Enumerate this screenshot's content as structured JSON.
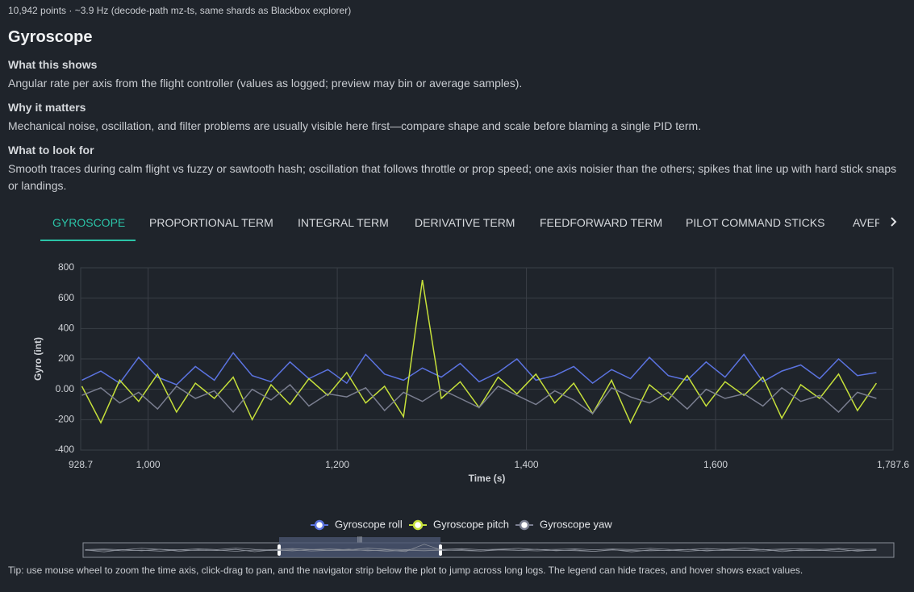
{
  "header": {
    "meta": "10,942 points · ~3.9 Hz (decode-path mz-ts, same shards as Blackbox explorer)",
    "title": "Gyroscope"
  },
  "sections": [
    {
      "heading": "What this shows",
      "text": "Angular rate per axis from the flight controller (values as logged; preview may bin or average samples)."
    },
    {
      "heading": "Why it matters",
      "text": "Mechanical noise, oscillation, and filter problems are usually visible here first—compare shape and scale before blaming a single PID term."
    },
    {
      "heading": "What to look for",
      "text": "Smooth traces during calm flight vs fuzzy or sawtooth hash; oscillation that follows throttle or prop speed; one axis noisier than the others; spikes that line up with hard stick snaps or landings."
    }
  ],
  "tabs": [
    "GYROSCOPE",
    "PROPORTIONAL TERM",
    "INTEGRAL TERM",
    "DERIVATIVE TERM",
    "FEEDFORWARD TERM",
    "PILOT COMMAND STICKS",
    "AVER"
  ],
  "chart_data": {
    "type": "line",
    "xlabel": "Time (s)",
    "ylabel": "Gyro (int)",
    "x": [
      930,
      950,
      970,
      990,
      1010,
      1030,
      1050,
      1070,
      1090,
      1110,
      1130,
      1150,
      1170,
      1190,
      1210,
      1230,
      1250,
      1270,
      1290,
      1310,
      1330,
      1350,
      1370,
      1390,
      1410,
      1430,
      1450,
      1470,
      1490,
      1510,
      1530,
      1550,
      1570,
      1590,
      1610,
      1630,
      1650,
      1670,
      1690,
      1710,
      1730,
      1750,
      1770
    ],
    "series": [
      {
        "name": "Gyroscope roll",
        "color": "#5b73e0",
        "values": [
          60,
          120,
          40,
          210,
          80,
          30,
          150,
          60,
          240,
          90,
          50,
          180,
          70,
          130,
          40,
          230,
          100,
          60,
          140,
          80,
          170,
          50,
          110,
          200,
          60,
          90,
          150,
          40,
          130,
          70,
          210,
          90,
          60,
          180,
          80,
          230,
          50,
          120,
          160,
          70,
          200,
          90,
          110
        ]
      },
      {
        "name": "Gyroscope pitch",
        "color": "#c6e03a",
        "values": [
          20,
          -220,
          60,
          -80,
          100,
          -150,
          40,
          -60,
          80,
          -200,
          30,
          -100,
          70,
          -40,
          110,
          -90,
          20,
          -180,
          720,
          -60,
          50,
          -120,
          80,
          -30,
          100,
          -90,
          40,
          -160,
          60,
          -220,
          30,
          -70,
          90,
          -110,
          50,
          -40,
          80,
          -190,
          30,
          -60,
          100,
          -140,
          40
        ]
      },
      {
        "name": "Gyroscope yaw",
        "color": "#7a7e90",
        "values": [
          -40,
          10,
          -90,
          -20,
          -130,
          20,
          -60,
          -10,
          -150,
          0,
          -70,
          30,
          -110,
          -30,
          -50,
          10,
          -140,
          -20,
          -80,
          0,
          -60,
          -120,
          20,
          -40,
          -100,
          -10,
          -70,
          -160,
          10,
          -50,
          -90,
          -20,
          -130,
          0,
          -60,
          -30,
          -110,
          10,
          -80,
          -40,
          -150,
          -20,
          -60
        ]
      }
    ],
    "xlim": [
      928.7,
      1787.6
    ],
    "xticks": [
      {
        "value": 928.7,
        "label": "928.7"
      },
      {
        "value": 1000,
        "label": "1,000"
      },
      {
        "value": 1200,
        "label": "1,200"
      },
      {
        "value": 1400,
        "label": "1,400"
      },
      {
        "value": 1600,
        "label": "1,600"
      },
      {
        "value": 1787.6,
        "label": "1,787.6"
      }
    ],
    "ylim": [
      -400,
      800
    ],
    "yticks": [
      -400,
      -200,
      {
        "value": 0,
        "label": "0.00"
      },
      200,
      400,
      600,
      800
    ],
    "grid": true
  },
  "tip": "Tip: use mouse wheel to zoom the time axis, click-drag to pan, and the navigator strip below the plot to jump across long logs. The legend can hide traces, and hover shows exact values."
}
